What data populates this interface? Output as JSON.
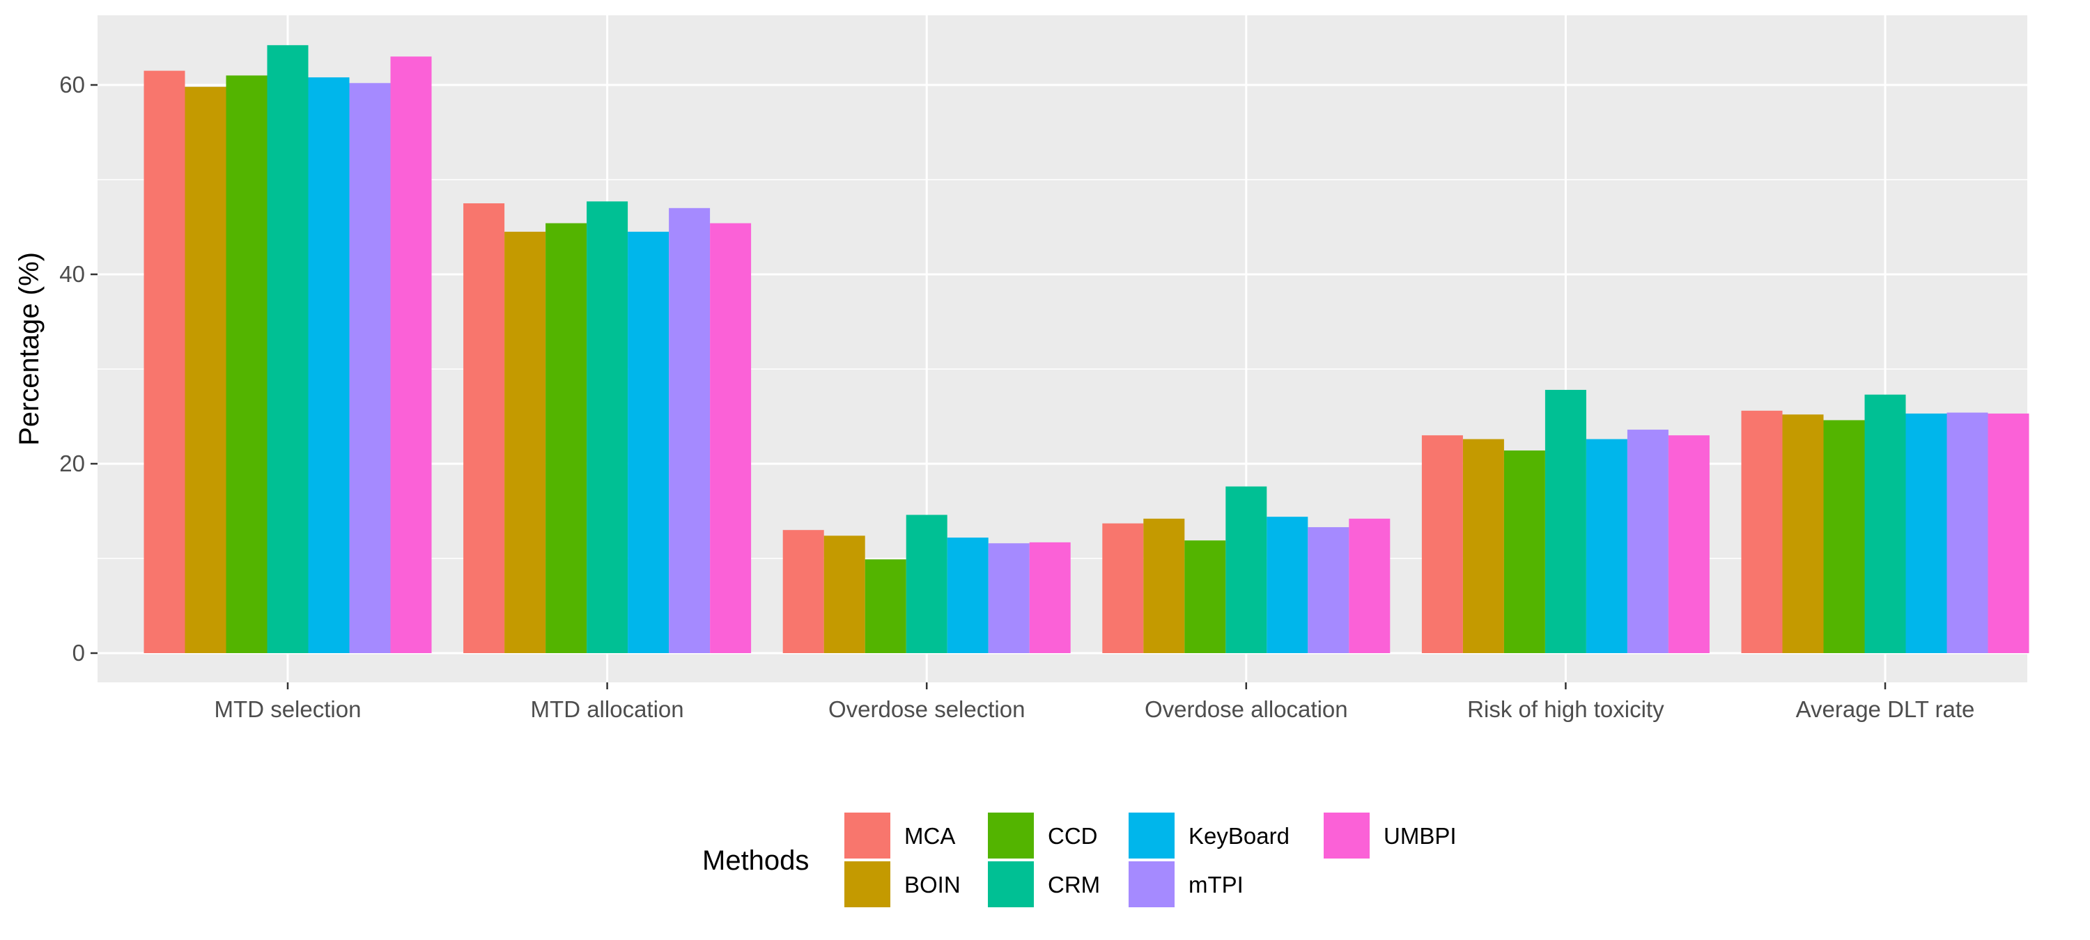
{
  "chart_data": {
    "type": "bar",
    "title": "",
    "xlabel": "",
    "ylabel": "Percentage (%)",
    "ylim": [
      0,
      67
    ],
    "yticks": [
      0,
      20,
      40,
      60
    ],
    "grid": true,
    "legend": {
      "title": "Methods",
      "position": "bottom"
    },
    "categories": [
      "MTD selection",
      "MTD allocation",
      "Overdose selection",
      "Overdose allocation",
      "Risk of high toxicity",
      "Average DLT rate"
    ],
    "series": [
      {
        "name": "MCA",
        "color": "#F8766D",
        "values": [
          61.5,
          47.5,
          13.0,
          13.7,
          23.0,
          25.6
        ]
      },
      {
        "name": "BOIN",
        "color": "#C49A00",
        "values": [
          59.8,
          44.5,
          12.4,
          14.2,
          22.6,
          25.2
        ]
      },
      {
        "name": "CCD",
        "color": "#53B400",
        "values": [
          61.0,
          45.4,
          9.9,
          11.9,
          21.4,
          24.6
        ]
      },
      {
        "name": "CRM",
        "color": "#00C094",
        "values": [
          64.2,
          47.7,
          14.6,
          17.6,
          27.8,
          27.3
        ]
      },
      {
        "name": "KeyBoard",
        "color": "#00B6EB",
        "values": [
          60.8,
          44.5,
          12.2,
          14.4,
          22.6,
          25.3
        ]
      },
      {
        "name": "mTPI",
        "color": "#A58AFF",
        "values": [
          60.2,
          47.0,
          11.6,
          13.3,
          23.6,
          25.4
        ]
      },
      {
        "name": "UMBPI",
        "color": "#FB61D7",
        "values": [
          63.0,
          45.4,
          11.7,
          14.2,
          23.0,
          25.3
        ]
      }
    ]
  }
}
